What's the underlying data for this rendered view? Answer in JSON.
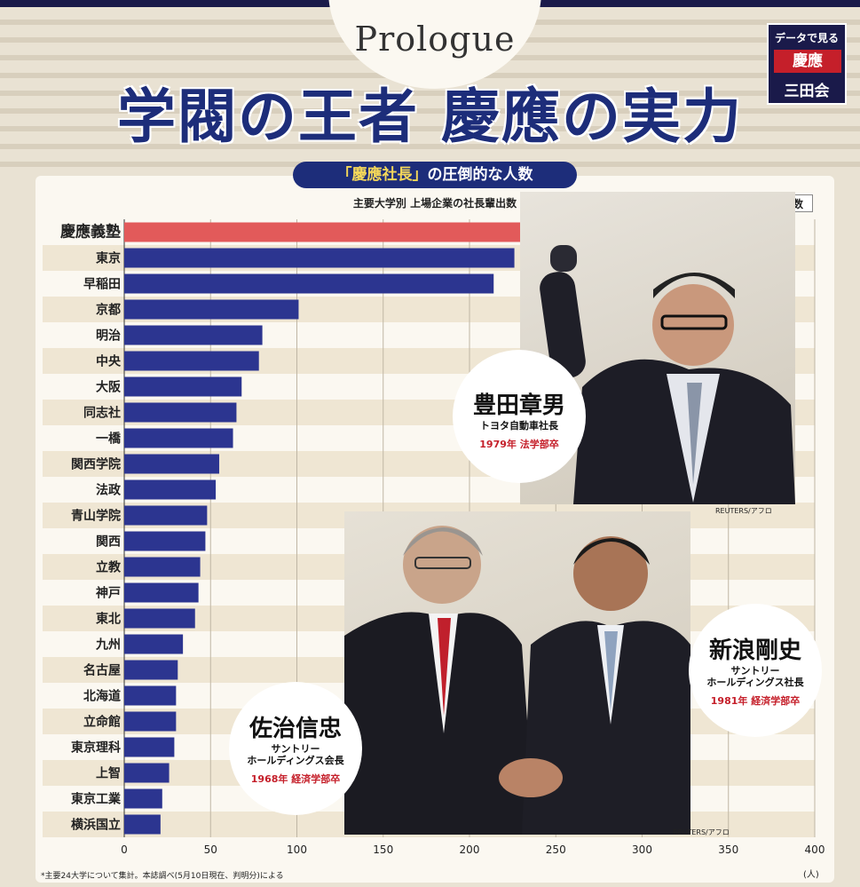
{
  "header": {
    "prologue": "Prologue",
    "title": "学閥の王者 慶應の実力",
    "badge": {
      "line1": "データで見る",
      "line2": "慶應",
      "line3": "三田会"
    }
  },
  "chart_header": {
    "pill_prefix": "「慶應社長」",
    "pill_suffix": "の圧倒的な人数",
    "subtitle": "主要大学別 上場企業の社長輩出数",
    "legend": "人数"
  },
  "chart_data": {
    "type": "bar",
    "orientation": "horizontal",
    "categories": [
      "慶應義塾",
      "東京",
      "早稲田",
      "京都",
      "明治",
      "中央",
      "大阪",
      "同志社",
      "一橋",
      "関西学院",
      "法政",
      "青山学院",
      "関西",
      "立教",
      "神戸",
      "東北",
      "九州",
      "名古屋",
      "北海道",
      "立命館",
      "東京理科",
      "上智",
      "東京工業",
      "横浜国立"
    ],
    "values": [
      357,
      226,
      214,
      101,
      80,
      78,
      68,
      65,
      63,
      55,
      53,
      48,
      47,
      44,
      43,
      41,
      34,
      31,
      30,
      30,
      29,
      26,
      22,
      21
    ],
    "highlight_index": 0,
    "xlim": [
      0,
      400
    ],
    "xticks": [
      0,
      50,
      100,
      150,
      200,
      250,
      300,
      350,
      400
    ],
    "unit": "(人)",
    "colors": {
      "highlight": "#e25a5a",
      "default": "#2c3590",
      "stripe": "#efe6d3"
    }
  },
  "people": [
    {
      "name": "豊田章男",
      "role": "トヨタ自動車社長",
      "grad": "1979年 法学部卒"
    },
    {
      "name": "新浪剛史",
      "role_line1": "サントリー",
      "role_line2": "ホールディングス社長",
      "grad": "1981年 経済学部卒"
    },
    {
      "name": "佐治信忠",
      "role_line1": "サントリー",
      "role_line2": "ホールディングス会長",
      "grad": "1968年 経済学部卒"
    }
  ],
  "credits": {
    "photo1": "REUTERS/アフロ",
    "photo2": "REUTERS/アフロ"
  },
  "footnote": "*主要24大学について集計。本誌調べ(5月10日現在、判明分)による"
}
